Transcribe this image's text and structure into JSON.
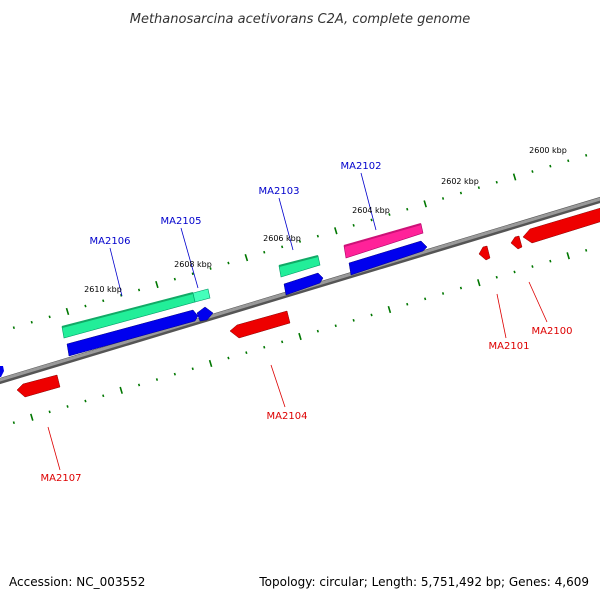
{
  "title": "Methanosarcina acetivorans C2A, complete genome",
  "footer": {
    "accession": "Accession: NC_003552",
    "summary": "Topology: circular; Length: 5,751,492 bp; Genes: 4,609"
  },
  "ticks": [
    {
      "label": "2600 kbp"
    },
    {
      "label": "2602 kbp"
    },
    {
      "label": "2604 kbp"
    },
    {
      "label": "2606 kbp"
    },
    {
      "label": "2608 kbp"
    },
    {
      "label": "2610 kbp"
    }
  ],
  "genes": [
    {
      "id": "MA2100",
      "strand": "reverse"
    },
    {
      "id": "MA2101",
      "strand": "reverse"
    },
    {
      "id": "MA2102",
      "strand": "forward"
    },
    {
      "id": "MA2103",
      "strand": "forward"
    },
    {
      "id": "MA2104",
      "strand": "reverse"
    },
    {
      "id": "MA2105",
      "strand": "forward"
    },
    {
      "id": "MA2106",
      "strand": "forward"
    },
    {
      "id": "MA2107",
      "strand": "reverse"
    }
  ],
  "colors": {
    "backbone": "#808080",
    "forward_cds": "#0000ff",
    "reverse_cds": "#ff0000",
    "feature_green": "#22ee99",
    "feature_pink": "#ff2299",
    "tick_green": "#007700",
    "forward_label": "#0000cc",
    "reverse_label": "#dd0000"
  }
}
